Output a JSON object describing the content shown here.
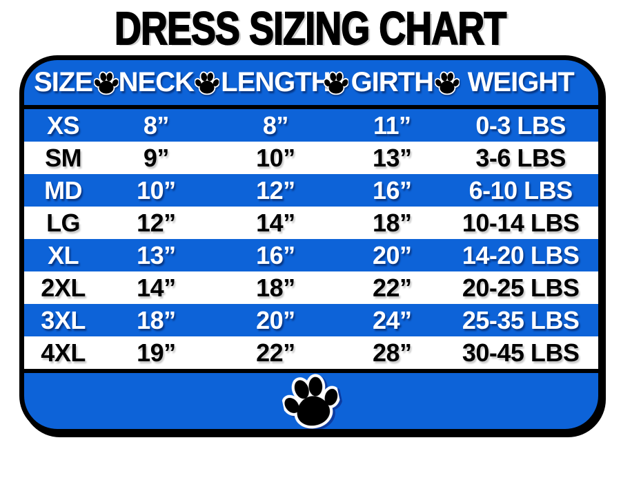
{
  "title": "DRESS SIZING CHART",
  "colors": {
    "blue": "#0d63d8",
    "black": "#000000",
    "white": "#ffffff"
  },
  "icons": {
    "header_separator": "paw-print-icon",
    "footer": "paw-print-icon"
  },
  "chart_data": {
    "type": "table",
    "title": "DRESS SIZING CHART",
    "columns": [
      "SIZE",
      "NECK",
      "LENGTH",
      "GIRTH",
      "WEIGHT"
    ],
    "column_keys": [
      "size",
      "neck",
      "length",
      "girth",
      "weight"
    ],
    "rows": [
      [
        "XS",
        "8”",
        "8”",
        "11”",
        "0-3 LBS"
      ],
      [
        "SM",
        "9”",
        "10”",
        "13”",
        "3-6 LBS"
      ],
      [
        "MD",
        "10”",
        "12”",
        "16”",
        "6-10 LBS"
      ],
      [
        "LG",
        "12”",
        "14”",
        "18”",
        "10-14 LBS"
      ],
      [
        "XL",
        "13”",
        "16”",
        "20”",
        "14-20 LBS"
      ],
      [
        "2XL",
        "14”",
        "18”",
        "22”",
        "20-25 LBS"
      ],
      [
        "3XL",
        "18”",
        "20”",
        "24”",
        "25-35 LBS"
      ],
      [
        "4XL",
        "19”",
        "22”",
        "28”",
        "30-45 LBS"
      ]
    ]
  }
}
